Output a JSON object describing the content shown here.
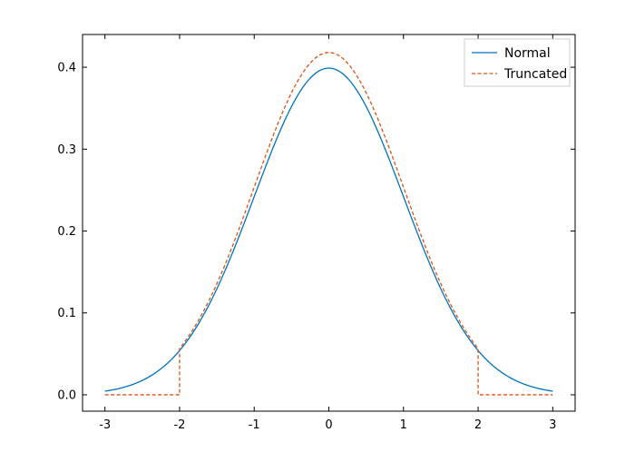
{
  "chart_data": {
    "type": "line",
    "title": "",
    "xlabel": "",
    "ylabel": "",
    "xlim": [
      -3.3,
      3.3
    ],
    "ylim": [
      -0.02,
      0.44
    ],
    "x_ticks": [
      -3,
      -2,
      -1,
      0,
      1,
      2,
      3
    ],
    "x_tick_labels": [
      "-3",
      "-2",
      "-1",
      "0",
      "1",
      "2",
      "3"
    ],
    "y_ticks": [
      0.0,
      0.1,
      0.2,
      0.3,
      0.4
    ],
    "y_tick_labels": [
      "0.0",
      "0.1",
      "0.2",
      "0.3",
      "0.4"
    ],
    "grid": false,
    "legend_position": "top-right",
    "series": [
      {
        "name": "Normal",
        "color": "#0072bd",
        "style": "solid",
        "x": [
          -3.0,
          -2.75,
          -2.5,
          -2.25,
          -2.0,
          -1.75,
          -1.5,
          -1.25,
          -1.0,
          -0.75,
          -0.5,
          -0.25,
          0.0,
          0.25,
          0.5,
          0.75,
          1.0,
          1.25,
          1.5,
          1.75,
          2.0,
          2.25,
          2.5,
          2.75,
          3.0
        ],
        "y": [
          0.0044,
          0.0091,
          0.0175,
          0.0317,
          0.054,
          0.0863,
          0.1295,
          0.1826,
          0.242,
          0.3011,
          0.3521,
          0.3867,
          0.3989,
          0.3867,
          0.3521,
          0.3011,
          0.242,
          0.1826,
          0.1295,
          0.0863,
          0.054,
          0.0317,
          0.0175,
          0.0091,
          0.0044
        ]
      },
      {
        "name": "Truncated",
        "color": "#d95319",
        "style": "dashed",
        "x": [
          -3.0,
          -2.5,
          -2.0,
          -2.0,
          -1.75,
          -1.5,
          -1.25,
          -1.0,
          -0.75,
          -0.5,
          -0.25,
          0.0,
          0.25,
          0.5,
          0.75,
          1.0,
          1.25,
          1.5,
          1.75,
          2.0,
          2.0,
          2.5,
          3.0
        ],
        "y": [
          0.0,
          0.0,
          0.0,
          0.0565,
          0.0903,
          0.1355,
          0.191,
          0.2532,
          0.315,
          0.3683,
          0.4045,
          0.4173,
          0.4045,
          0.3683,
          0.315,
          0.2532,
          0.191,
          0.1355,
          0.0903,
          0.0565,
          0.0,
          0.0,
          0.0
        ]
      }
    ]
  }
}
